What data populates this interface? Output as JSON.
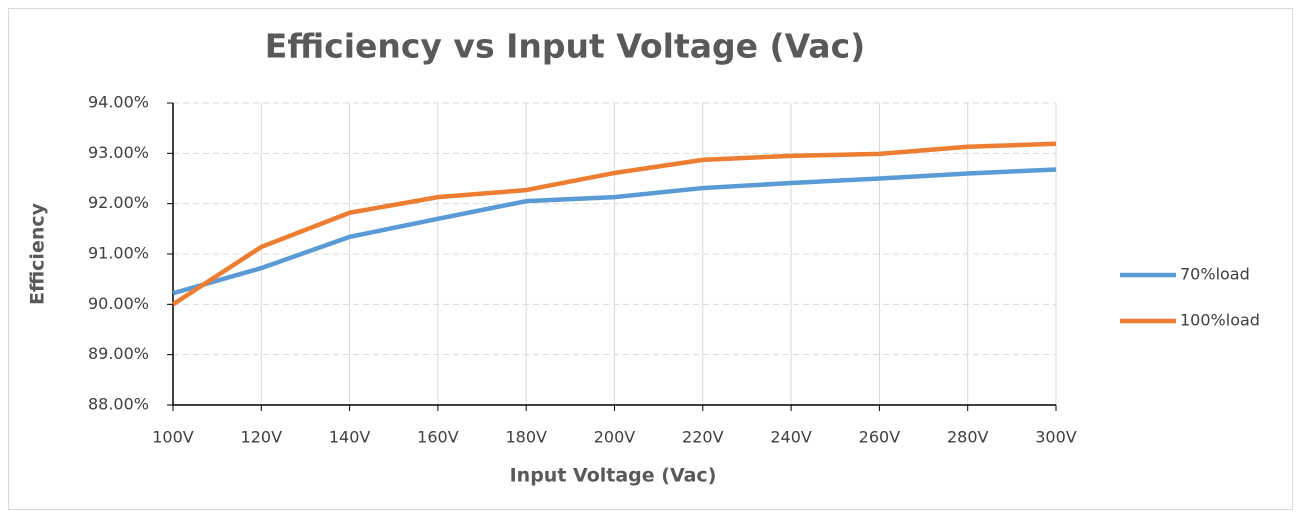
{
  "chart_data": {
    "type": "line",
    "title": "Efficiency vs Input Voltage (Vac)",
    "x_label": "Input Voltage (Vac)",
    "y_label": "Efficiency",
    "categories": [
      "100V",
      "120V",
      "140V",
      "160V",
      "180V",
      "200V",
      "220V",
      "240V",
      "260V",
      "280V",
      "300V"
    ],
    "series": [
      {
        "name": "70%load",
        "color": "#5b9bd5",
        "values": [
          90.22,
          90.72,
          91.34,
          91.7,
          92.05,
          92.13,
          92.31,
          92.41,
          92.5,
          92.6,
          92.68
        ]
      },
      {
        "name": "100%load",
        "color": "#ed7d31",
        "values": [
          90.0,
          91.14,
          91.82,
          92.13,
          92.27,
          92.61,
          92.87,
          92.95,
          92.99,
          93.13,
          93.19
        ]
      }
    ],
    "ylim": [
      88,
      94
    ],
    "yticks": [
      {
        "value": 88,
        "label": "88.00%"
      },
      {
        "value": 89,
        "label": "89.00%"
      },
      {
        "value": 90,
        "label": "90.00%"
      },
      {
        "value": 91,
        "label": "91.00%"
      },
      {
        "value": 92,
        "label": "92.00%"
      },
      {
        "value": 93,
        "label": "93.00%"
      },
      {
        "value": 94,
        "label": "94.00%"
      }
    ],
    "grid": true,
    "legend": "right"
  }
}
